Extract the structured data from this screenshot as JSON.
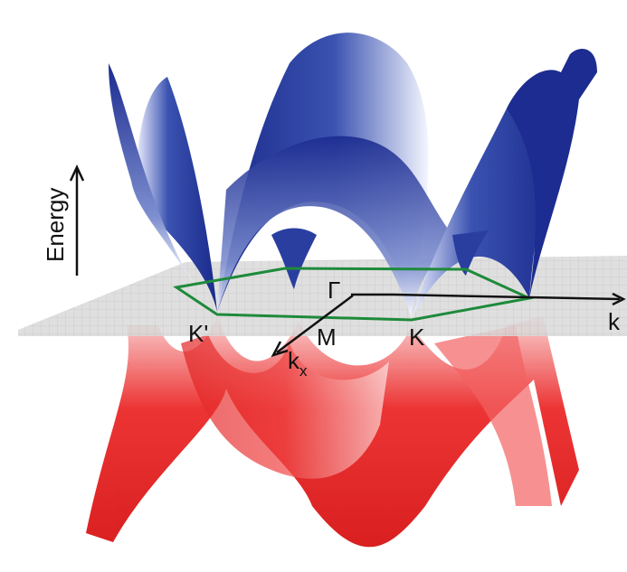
{
  "axis_label": "Energy",
  "points": {
    "gamma": "Γ",
    "k_prime": "K'",
    "m": "M",
    "k": "K"
  },
  "axes": {
    "kx_main": "k",
    "kx_sub": "x",
    "ky_main": "k"
  }
}
